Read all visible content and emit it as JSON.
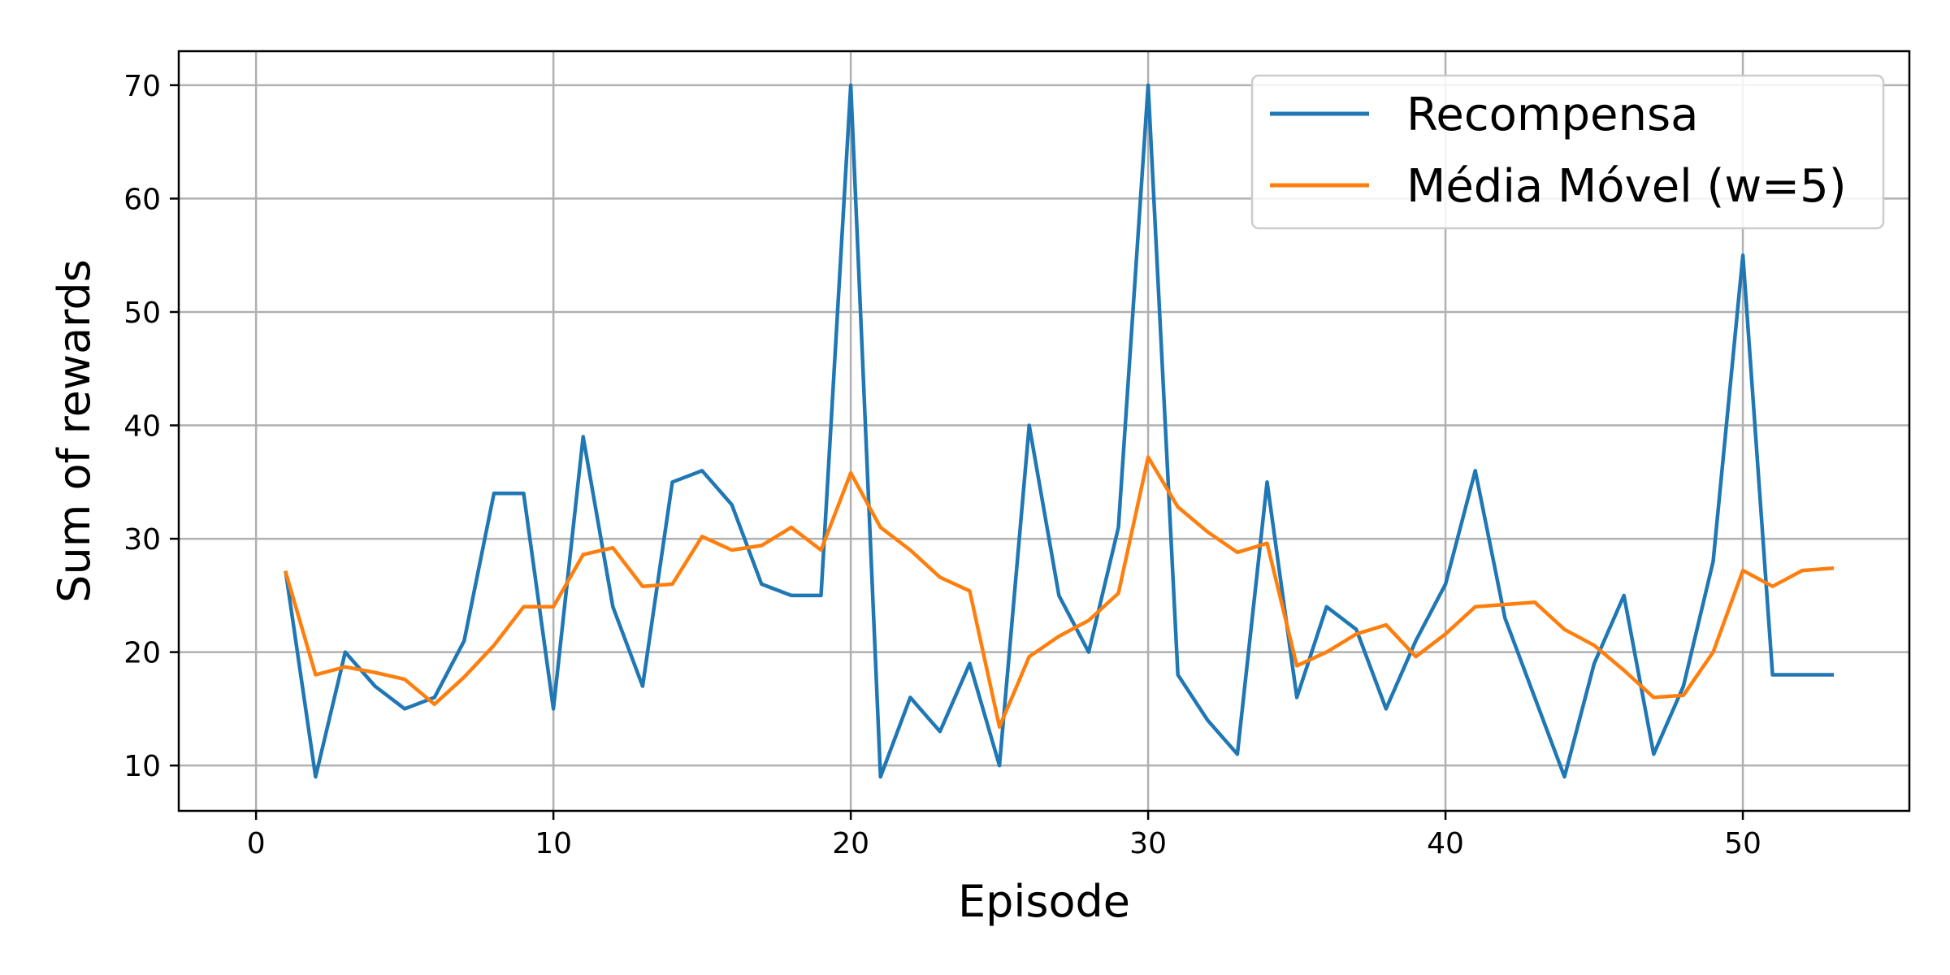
{
  "chart_data": {
    "type": "line",
    "title": "",
    "xlabel": "Episode",
    "ylabel": "Sum of rewards",
    "xlim": [
      -2.6,
      55.6
    ],
    "ylim": [
      6,
      73
    ],
    "xticks": [
      0,
      10,
      20,
      30,
      40,
      50
    ],
    "yticks": [
      10,
      20,
      30,
      40,
      50,
      60,
      70
    ],
    "grid": true,
    "legend_position": "top-right",
    "series": [
      {
        "name": "Recompensa",
        "color": "#1f77b4",
        "x": [
          1,
          2,
          3,
          4,
          5,
          6,
          7,
          8,
          9,
          10,
          11,
          12,
          13,
          14,
          15,
          16,
          17,
          18,
          19,
          20,
          21,
          22,
          23,
          24,
          25,
          26,
          27,
          28,
          29,
          30,
          31,
          32,
          33,
          34,
          35,
          36,
          37,
          38,
          39,
          40,
          41,
          42,
          43,
          44,
          45,
          46,
          47,
          48,
          49,
          50,
          51,
          52,
          53
        ],
        "values": [
          27,
          9,
          20,
          17,
          15,
          16,
          21,
          34,
          34,
          15,
          39,
          24,
          17,
          35,
          36,
          33,
          26,
          25,
          25,
          70,
          9,
          16,
          13,
          19,
          10,
          40,
          25,
          20,
          31,
          70,
          18,
          14,
          11,
          35,
          16,
          24,
          22,
          15,
          21,
          26,
          36,
          23,
          16,
          9,
          19,
          25,
          11,
          17,
          28,
          55,
          18,
          18,
          18
        ]
      },
      {
        "name": "Média Móvel (w=5)",
        "color": "#ff7f0e",
        "x": [
          1,
          2,
          3,
          4,
          5,
          6,
          7,
          8,
          9,
          10,
          11,
          12,
          13,
          14,
          15,
          16,
          17,
          18,
          19,
          20,
          21,
          22,
          23,
          24,
          25,
          26,
          27,
          28,
          29,
          30,
          31,
          32,
          33,
          34,
          35,
          36,
          37,
          38,
          39,
          40,
          41,
          42,
          43,
          44,
          45,
          46,
          47,
          48,
          49,
          50,
          51,
          52,
          53
        ],
        "values": [
          27,
          18,
          18.7,
          18.2,
          17.6,
          15.4,
          17.8,
          20.6,
          24,
          24,
          28.6,
          29.2,
          25.8,
          26,
          30.2,
          29,
          29.4,
          31,
          29,
          35.8,
          31,
          29,
          26.6,
          25.4,
          13.4,
          19.6,
          21.4,
          22.8,
          25.2,
          37.2,
          32.8,
          30.6,
          28.8,
          29.6,
          18.8,
          20,
          21.6,
          22.4,
          19.6,
          21.6,
          24,
          24.2,
          24.4,
          22,
          20.6,
          18.4,
          16,
          16.2,
          20,
          27.2,
          25.8,
          27.2,
          27.4
        ]
      }
    ]
  }
}
